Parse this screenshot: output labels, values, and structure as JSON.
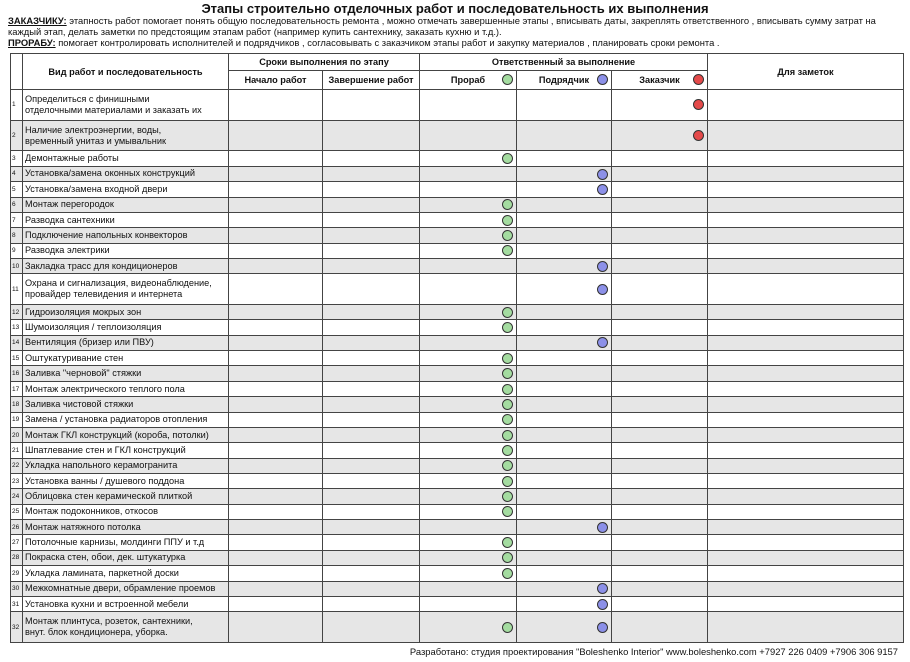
{
  "header": {
    "title": "Этапы строительно отделочных работ и последовательность их выполнения"
  },
  "intro": [
    {
      "label": "ЗАКАЗЧИКУ:",
      "text": "этапность работ помогает  понять общую последовательность ремонта , можно отмечать завершенные этапы , вписывать даты, закреплять ответственного , вписывать сумму затрат на каждый этап, делать заметки по предстоящим этапам работ  (например купить сантехнику, заказать кухню и т.д.)."
    },
    {
      "label": "ПРОРАБУ:",
      "text": "помогает контролировать исполнителей и подрядчиков , согласовывать с заказчиком этапы работ и закупку материалов  , планировать сроки ремонта ."
    }
  ],
  "table": {
    "columns": {
      "work": "Вид работ и последовательность",
      "terms": "Сроки выполнения по этапу",
      "start": "Начало работ",
      "end": "Завершение работ",
      "responsible": "Ответственный за выполнение",
      "roles": [
        "Прораб",
        "Подрядчик",
        "Заказчик"
      ],
      "notes": "Для заметок"
    },
    "rows": [
      {
        "no": "1",
        "work": [
          "Определиться с финишными",
          "отделочными материалами и заказать их"
        ],
        "marks": [
          false,
          false,
          true
        ]
      },
      {
        "no": "2",
        "work": [
          "Наличие электроэнергии, воды,",
          "временный унитаз и умывальник"
        ],
        "marks": [
          false,
          false,
          true
        ]
      },
      {
        "no": "3",
        "work": [
          "Демонтажные работы"
        ],
        "marks": [
          true,
          false,
          false
        ]
      },
      {
        "no": "4",
        "work": [
          "Установка/замена оконных конструкций"
        ],
        "marks": [
          false,
          true,
          false
        ]
      },
      {
        "no": "5",
        "work": [
          "Установка/замена входной двери"
        ],
        "marks": [
          false,
          true,
          false
        ]
      },
      {
        "no": "6",
        "work": [
          "Монтаж перегородок"
        ],
        "marks": [
          true,
          false,
          false
        ]
      },
      {
        "no": "7",
        "work": [
          "Разводка сантехники"
        ],
        "marks": [
          true,
          false,
          false
        ]
      },
      {
        "no": "8",
        "work": [
          "Подключение напольных конвекторов"
        ],
        "marks": [
          true,
          false,
          false
        ]
      },
      {
        "no": "9",
        "work": [
          "Разводка электрики"
        ],
        "marks": [
          true,
          false,
          false
        ]
      },
      {
        "no": "10",
        "work": [
          "Закладка трасс для кондиционеров"
        ],
        "marks": [
          false,
          true,
          false
        ]
      },
      {
        "no": "11",
        "work": [
          "Охрана и сигнализация, видеонаблюдение,",
          "провайдер телевидения и интернета"
        ],
        "marks": [
          false,
          true,
          false
        ]
      },
      {
        "no": "12",
        "work": [
          "Гидроизоляция мокрых зон"
        ],
        "marks": [
          true,
          false,
          false
        ]
      },
      {
        "no": "13",
        "work": [
          "Шумоизоляция / теплоизоляция"
        ],
        "marks": [
          true,
          false,
          false
        ]
      },
      {
        "no": "14",
        "work": [
          "Вентиляция (бризер или ПВУ)"
        ],
        "marks": [
          false,
          true,
          false
        ]
      },
      {
        "no": "15",
        "work": [
          "Оштукатуривание стен"
        ],
        "marks": [
          true,
          false,
          false
        ]
      },
      {
        "no": "16",
        "work": [
          "Заливка \"черновой\" стяжки"
        ],
        "marks": [
          true,
          false,
          false
        ]
      },
      {
        "no": "17",
        "work": [
          "Монтаж электрического теплого пола"
        ],
        "marks": [
          true,
          false,
          false
        ]
      },
      {
        "no": "18",
        "work": [
          "Заливка чистовой стяжки"
        ],
        "marks": [
          true,
          false,
          false
        ]
      },
      {
        "no": "19",
        "work": [
          "Замена / установка радиаторов отопления"
        ],
        "marks": [
          true,
          false,
          false
        ]
      },
      {
        "no": "20",
        "work": [
          "Монтаж ГКЛ конструкций (короба, потолки)"
        ],
        "marks": [
          true,
          false,
          false
        ]
      },
      {
        "no": "21",
        "work": [
          "Шпатлевание стен и ГКЛ конструкций"
        ],
        "marks": [
          true,
          false,
          false
        ]
      },
      {
        "no": "22",
        "work": [
          "Укладка напольного керамогранита"
        ],
        "marks": [
          true,
          false,
          false
        ]
      },
      {
        "no": "23",
        "work": [
          "Установка ванны / душевого поддона"
        ],
        "marks": [
          true,
          false,
          false
        ]
      },
      {
        "no": "24",
        "work": [
          "Облицовка стен керамической плиткой"
        ],
        "marks": [
          true,
          false,
          false
        ]
      },
      {
        "no": "25",
        "work": [
          "Монтаж подоконников, откосов"
        ],
        "marks": [
          true,
          false,
          false
        ]
      },
      {
        "no": "26",
        "work": [
          "Монтаж натяжного потолка"
        ],
        "marks": [
          false,
          true,
          false
        ]
      },
      {
        "no": "27",
        "work": [
          "Потолочные карнизы, молдинги ППУ и т.д"
        ],
        "marks": [
          true,
          false,
          false
        ]
      },
      {
        "no": "28",
        "work": [
          "Покраска стен, обои, дек. штукатурка"
        ],
        "marks": [
          true,
          false,
          false
        ]
      },
      {
        "no": "29",
        "work": [
          "Укладка ламината, паркетной доски"
        ],
        "marks": [
          true,
          false,
          false
        ]
      },
      {
        "no": "30",
        "work": [
          "Межкомнатные двери, обрамление проемов"
        ],
        "marks": [
          false,
          true,
          false
        ]
      },
      {
        "no": "31",
        "work": [
          "Установка кухни и встроенной мебели"
        ],
        "marks": [
          false,
          true,
          false
        ]
      },
      {
        "no": "32",
        "work": [
          "Монтаж плинтуса, розеток, сантехники,",
          "внут. блок кондиционера, уборка."
        ],
        "marks": [
          true,
          true,
          false
        ]
      }
    ]
  },
  "footer": {
    "text": "Разработано: студия проектирования \"Boleshenko Interior\" www.boleshenko.com    +7927 226 0409    +7906 306 9157"
  }
}
